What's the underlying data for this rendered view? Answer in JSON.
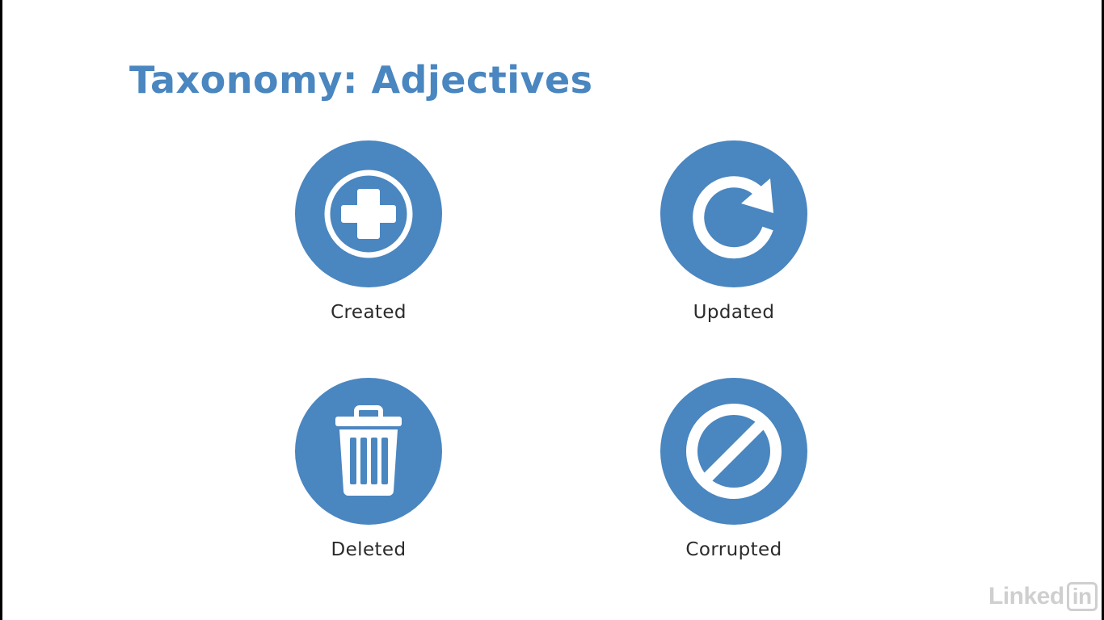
{
  "slide": {
    "title": "Taxonomy: Adjectives"
  },
  "items": [
    {
      "label": "Created",
      "icon": "plus-circle-icon"
    },
    {
      "label": "Updated",
      "icon": "refresh-arrow-icon"
    },
    {
      "label": "Deleted",
      "icon": "trash-can-icon"
    },
    {
      "label": "Corrupted",
      "icon": "prohibited-icon"
    }
  ],
  "watermark": {
    "text": "Linked",
    "box_text": "in"
  },
  "colors": {
    "accent": "#4a86c0",
    "label": "#2b2b2b",
    "background": "#ffffff"
  }
}
